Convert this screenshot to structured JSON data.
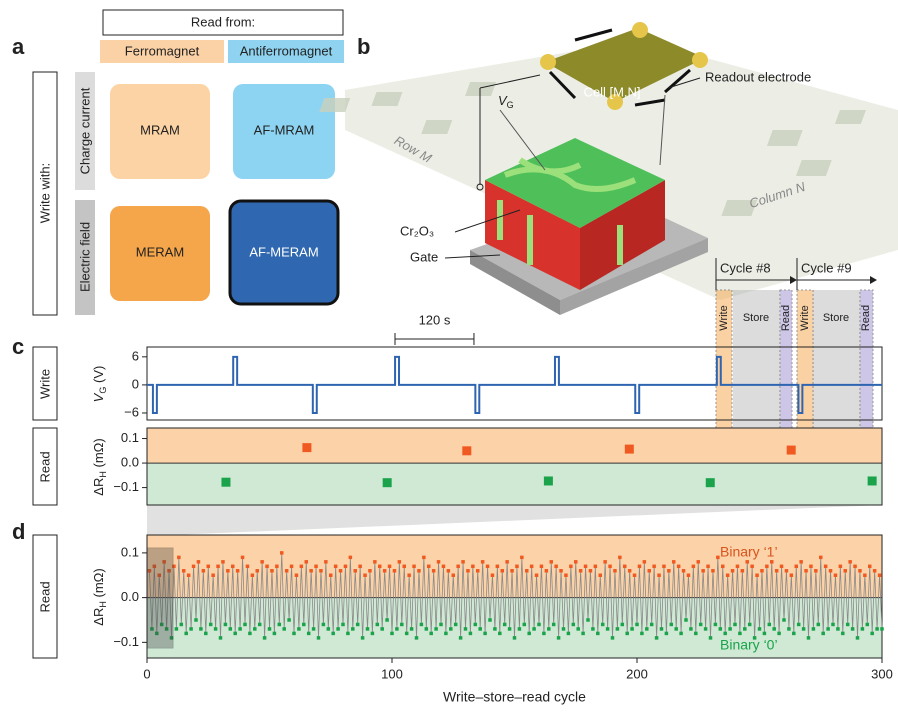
{
  "panel_labels": [
    "a",
    "b",
    "c",
    "d"
  ],
  "panel_a": {
    "header": "Read from:",
    "columns": [
      "Ferromagnet",
      "Antiferromagnet"
    ],
    "row_group": "Write with:",
    "rows": [
      "Charge current",
      "Electric field"
    ],
    "cells": [
      [
        "MRAM",
        "AF-MRAM"
      ],
      [
        "MERAM",
        "AF-MERAM"
      ]
    ]
  },
  "panel_b": {
    "readout": "Readout electrode",
    "cell": "Cell [M,N]",
    "row": "Row M",
    "column": "Column N",
    "material": "Cr₂O₃",
    "gate": "Gate",
    "voltage": {
      "symbol": "V",
      "subscript": "G"
    }
  },
  "cycles": [
    {
      "label": "Cycle #8",
      "phases": [
        "Write",
        "Store",
        "Read"
      ]
    },
    {
      "label": "Cycle #9",
      "phases": [
        "Write",
        "Store",
        "Read"
      ]
    }
  ],
  "chart_data": [
    {
      "type": "line",
      "row_label": "Write",
      "ylabel": {
        "symbol": "V",
        "subscript": "G",
        "unit": " (V)"
      },
      "scale_bar": {
        "value": 120,
        "label": "120 s"
      },
      "xlim": [
        0,
        1117
      ],
      "ylim": [
        -7.5,
        8.1
      ],
      "yticks": [
        6,
        0,
        {
          "value": -6,
          "label": "−6"
        }
      ],
      "series": [
        {
          "color": "#2e64b0",
          "x": [
            0,
            9,
            9,
            15,
            15,
            131,
            131,
            137,
            137,
            252,
            252,
            258,
            258,
            377,
            377,
            383,
            383,
            499,
            499,
            505,
            505,
            620,
            620,
            626,
            626,
            742,
            742,
            748,
            748,
            866,
            866,
            872,
            872,
            990,
            990,
            996,
            996,
            1117
          ],
          "values": [
            0,
            0,
            -6,
            -6,
            0,
            0,
            6,
            6,
            0,
            0,
            -6,
            -6,
            0,
            0,
            6,
            6,
            0,
            0,
            -6,
            -6,
            0,
            0,
            6,
            6,
            0,
            0,
            -6,
            -6,
            0,
            0,
            6,
            6,
            0,
            0,
            -6,
            -6,
            0,
            0
          ]
        }
      ]
    },
    {
      "type": "scatter",
      "row_label": "Read",
      "ylabel": {
        "symbol": "ΔR",
        "subscript": "H",
        "unit": " (mΩ)"
      },
      "band_colors": {
        "positive": "#fcd3a8",
        "negative": "#cfe9d5"
      },
      "xlim": [
        0,
        1117
      ],
      "ylim": [
        -0.171,
        0.143
      ],
      "yticks": [
        {
          "value": 0.1,
          "label": "0.1"
        },
        {
          "value": 0,
          "label": "0.0"
        },
        {
          "value": -0.1,
          "label": "−0.1"
        }
      ],
      "series": [
        {
          "color": "#f05a22",
          "x": [
            243,
            486,
            733,
            979
          ],
          "values": [
            0.063,
            0.05,
            0.057,
            0.053
          ]
        },
        {
          "color": "#1aa34a",
          "x": [
            120,
            365,
            610,
            856,
            1102
          ],
          "values": [
            -0.078,
            -0.08,
            -0.073,
            -0.08,
            -0.073
          ]
        }
      ]
    },
    {
      "type": "line",
      "markers": true,
      "row_label": "Read",
      "ylabel": {
        "symbol": "ΔR",
        "subscript": "H",
        "unit": " (mΩ)"
      },
      "xlabel": "Write–store–read cycle",
      "band_colors": {
        "positive": "#fcd3a8",
        "negative": "#cfe9d5"
      },
      "marker_colors": {
        "positive": "#f05a22",
        "negative": "#1aa34a"
      },
      "annotations": [
        {
          "text": "Binary ‘1’",
          "color": "#d9531e"
        },
        {
          "text": "Binary ‘0’",
          "color": "#1aa34a"
        }
      ],
      "xlim": [
        0,
        300
      ],
      "xticks": [
        0,
        100,
        200,
        300
      ],
      "ylim": [
        -0.135,
        0.14
      ],
      "yticks": [
        {
          "value": 0.1,
          "label": "0.1"
        },
        {
          "value": 0,
          "label": "0.0"
        },
        {
          "value": -0.1,
          "label": "−0.1"
        }
      ],
      "series": [
        {
          "color": "#8a8a8a",
          "x": [
            1,
            2,
            3,
            4,
            5,
            6,
            7,
            8,
            9,
            10,
            11,
            12,
            13,
            14,
            15,
            16,
            17,
            18,
            19,
            20,
            21,
            22,
            23,
            24,
            25,
            26,
            27,
            28,
            29,
            30,
            31,
            32,
            33,
            34,
            35,
            36,
            37,
            38,
            39,
            40,
            41,
            42,
            43,
            44,
            45,
            46,
            47,
            48,
            49,
            50,
            51,
            52,
            53,
            54,
            55,
            56,
            57,
            58,
            59,
            60,
            61,
            62,
            63,
            64,
            65,
            66,
            67,
            68,
            69,
            70,
            71,
            72,
            73,
            74,
            75,
            76,
            77,
            78,
            79,
            80,
            81,
            82,
            83,
            84,
            85,
            86,
            87,
            88,
            89,
            90,
            91,
            92,
            93,
            94,
            95,
            96,
            97,
            98,
            99,
            100,
            101,
            102,
            103,
            104,
            105,
            106,
            107,
            108,
            109,
            110,
            111,
            112,
            113,
            114,
            115,
            116,
            117,
            118,
            119,
            120,
            121,
            122,
            123,
            124,
            125,
            126,
            127,
            128,
            129,
            130,
            131,
            132,
            133,
            134,
            135,
            136,
            137,
            138,
            139,
            140,
            141,
            142,
            143,
            144,
            145,
            146,
            147,
            148,
            149,
            150,
            151,
            152,
            153,
            154,
            155,
            156,
            157,
            158,
            159,
            160,
            161,
            162,
            163,
            164,
            165,
            166,
            167,
            168,
            169,
            170,
            171,
            172,
            173,
            174,
            175,
            176,
            177,
            178,
            179,
            180,
            181,
            182,
            183,
            184,
            185,
            186,
            187,
            188,
            189,
            190,
            191,
            192,
            193,
            194,
            195,
            196,
            197,
            198,
            199,
            200,
            201,
            202,
            203,
            204,
            205,
            206,
            207,
            208,
            209,
            210,
            211,
            212,
            213,
            214,
            215,
            216,
            217,
            218,
            219,
            220,
            221,
            222,
            223,
            224,
            225,
            226,
            227,
            228,
            229,
            230,
            231,
            232,
            233,
            234,
            235,
            236,
            237,
            238,
            239,
            240,
            241,
            242,
            243,
            244,
            245,
            246,
            247,
            248,
            249,
            250,
            251,
            252,
            253,
            254,
            255,
            256,
            257,
            258,
            259,
            260,
            261,
            262,
            263,
            264,
            265,
            266,
            267,
            268,
            269,
            270,
            271,
            272,
            273,
            274,
            275,
            276,
            277,
            278,
            279,
            280,
            281,
            282,
            283,
            284,
            285,
            286,
            287,
            288,
            289,
            290,
            291,
            292,
            293,
            294,
            295,
            296,
            297,
            298,
            299,
            300
          ],
          "values": [
            0.06,
            -0.07,
            0.07,
            -0.08,
            0.05,
            -0.06,
            0.08,
            -0.07,
            0.06,
            -0.09,
            0.07,
            -0.07,
            0.09,
            -0.06,
            0.06,
            -0.08,
            0.05,
            -0.07,
            0.07,
            -0.05,
            0.08,
            -0.07,
            0.06,
            -0.08,
            0.07,
            -0.06,
            0.05,
            -0.07,
            0.07,
            -0.09,
            0.08,
            -0.06,
            0.06,
            -0.07,
            0.07,
            -0.08,
            0.06,
            -0.07,
            0.09,
            -0.06,
            0.07,
            -0.08,
            0.05,
            -0.07,
            0.06,
            -0.06,
            0.08,
            -0.09,
            0.07,
            -0.07,
            0.06,
            -0.08,
            0.07,
            -0.06,
            0.1,
            -0.07,
            0.06,
            -0.05,
            0.07,
            -0.08,
            0.05,
            -0.07,
            0.07,
            -0.06,
            0.08,
            -0.08,
            0.06,
            -0.07,
            0.07,
            -0.09,
            0.06,
            -0.06,
            0.08,
            -0.07,
            0.05,
            -0.08,
            0.07,
            -0.07,
            0.06,
            -0.06,
            0.07,
            -0.08,
            0.09,
            -0.07,
            0.06,
            -0.06,
            0.07,
            -0.09,
            0.05,
            -0.07,
            0.06,
            -0.08,
            0.08,
            -0.06,
            0.07,
            -0.07,
            0.06,
            -0.05,
            0.07,
            -0.08,
            0.06,
            -0.07,
            0.08,
            -0.06,
            0.07,
            -0.08,
            0.05,
            -0.07,
            0.07,
            -0.09,
            0.06,
            -0.06,
            0.09,
            -0.07,
            0.07,
            -0.08,
            0.06,
            -0.07,
            0.08,
            -0.06,
            0.07,
            -0.08,
            0.06,
            -0.07,
            0.05,
            -0.06,
            0.07,
            -0.09,
            0.08,
            -0.07,
            0.06,
            -0.08,
            0.07,
            -0.06,
            0.06,
            -0.07,
            0.08,
            -0.08,
            0.07,
            -0.05,
            0.05,
            -0.07,
            0.07,
            -0.08,
            0.06,
            -0.06,
            0.08,
            -0.07,
            0.06,
            -0.09,
            0.07,
            -0.07,
            0.09,
            -0.06,
            0.06,
            -0.08,
            0.07,
            -0.07,
            0.05,
            -0.06,
            0.07,
            -0.08,
            0.06,
            -0.07,
            0.08,
            -0.06,
            0.07,
            -0.09,
            0.06,
            -0.07,
            0.05,
            -0.08,
            0.07,
            -0.06,
            0.08,
            -0.07,
            0.06,
            -0.08,
            0.07,
            -0.05,
            0.06,
            -0.07,
            0.07,
            -0.08,
            0.05,
            -0.06,
            0.08,
            -0.07,
            0.07,
            -0.09,
            0.06,
            -0.07,
            0.09,
            -0.06,
            0.07,
            -0.08,
            0.06,
            -0.07,
            0.05,
            -0.06,
            0.07,
            -0.08,
            0.08,
            -0.07,
            0.06,
            -0.06,
            0.07,
            -0.09,
            0.05,
            -0.07,
            0.07,
            -0.08,
            0.06,
            -0.06,
            0.08,
            -0.07,
            0.07,
            -0.08,
            0.06,
            -0.05,
            0.05,
            -0.07,
            0.07,
            -0.08,
            0.08,
            -0.06,
            0.06,
            -0.07,
            0.07,
            -0.09,
            0.06,
            -0.06,
            0.09,
            -0.07,
            0.07,
            -0.08,
            0.05,
            -0.07,
            0.06,
            -0.06,
            0.07,
            -0.08,
            0.06,
            -0.07,
            0.08,
            -0.06,
            0.07,
            -0.09,
            0.05,
            -0.07,
            0.06,
            -0.08,
            0.07,
            -0.06,
            0.08,
            -0.07,
            0.06,
            -0.08,
            0.07,
            -0.05,
            0.06,
            -0.07,
            0.05,
            -0.08,
            0.07,
            -0.06,
            0.08,
            -0.07,
            0.06,
            -0.09,
            0.07,
            -0.07,
            0.06,
            -0.06,
            0.09,
            -0.08,
            0.07,
            -0.07,
            0.06,
            -0.06,
            0.05,
            -0.07,
            0.07,
            -0.08,
            0.06,
            -0.06,
            0.08,
            -0.07,
            0.07,
            -0.09,
            0.06,
            -0.07,
            0.05,
            -0.06,
            0.07,
            -0.08,
            0.06,
            -0.07,
            0.05,
            -0.07
          ]
        }
      ]
    }
  ]
}
